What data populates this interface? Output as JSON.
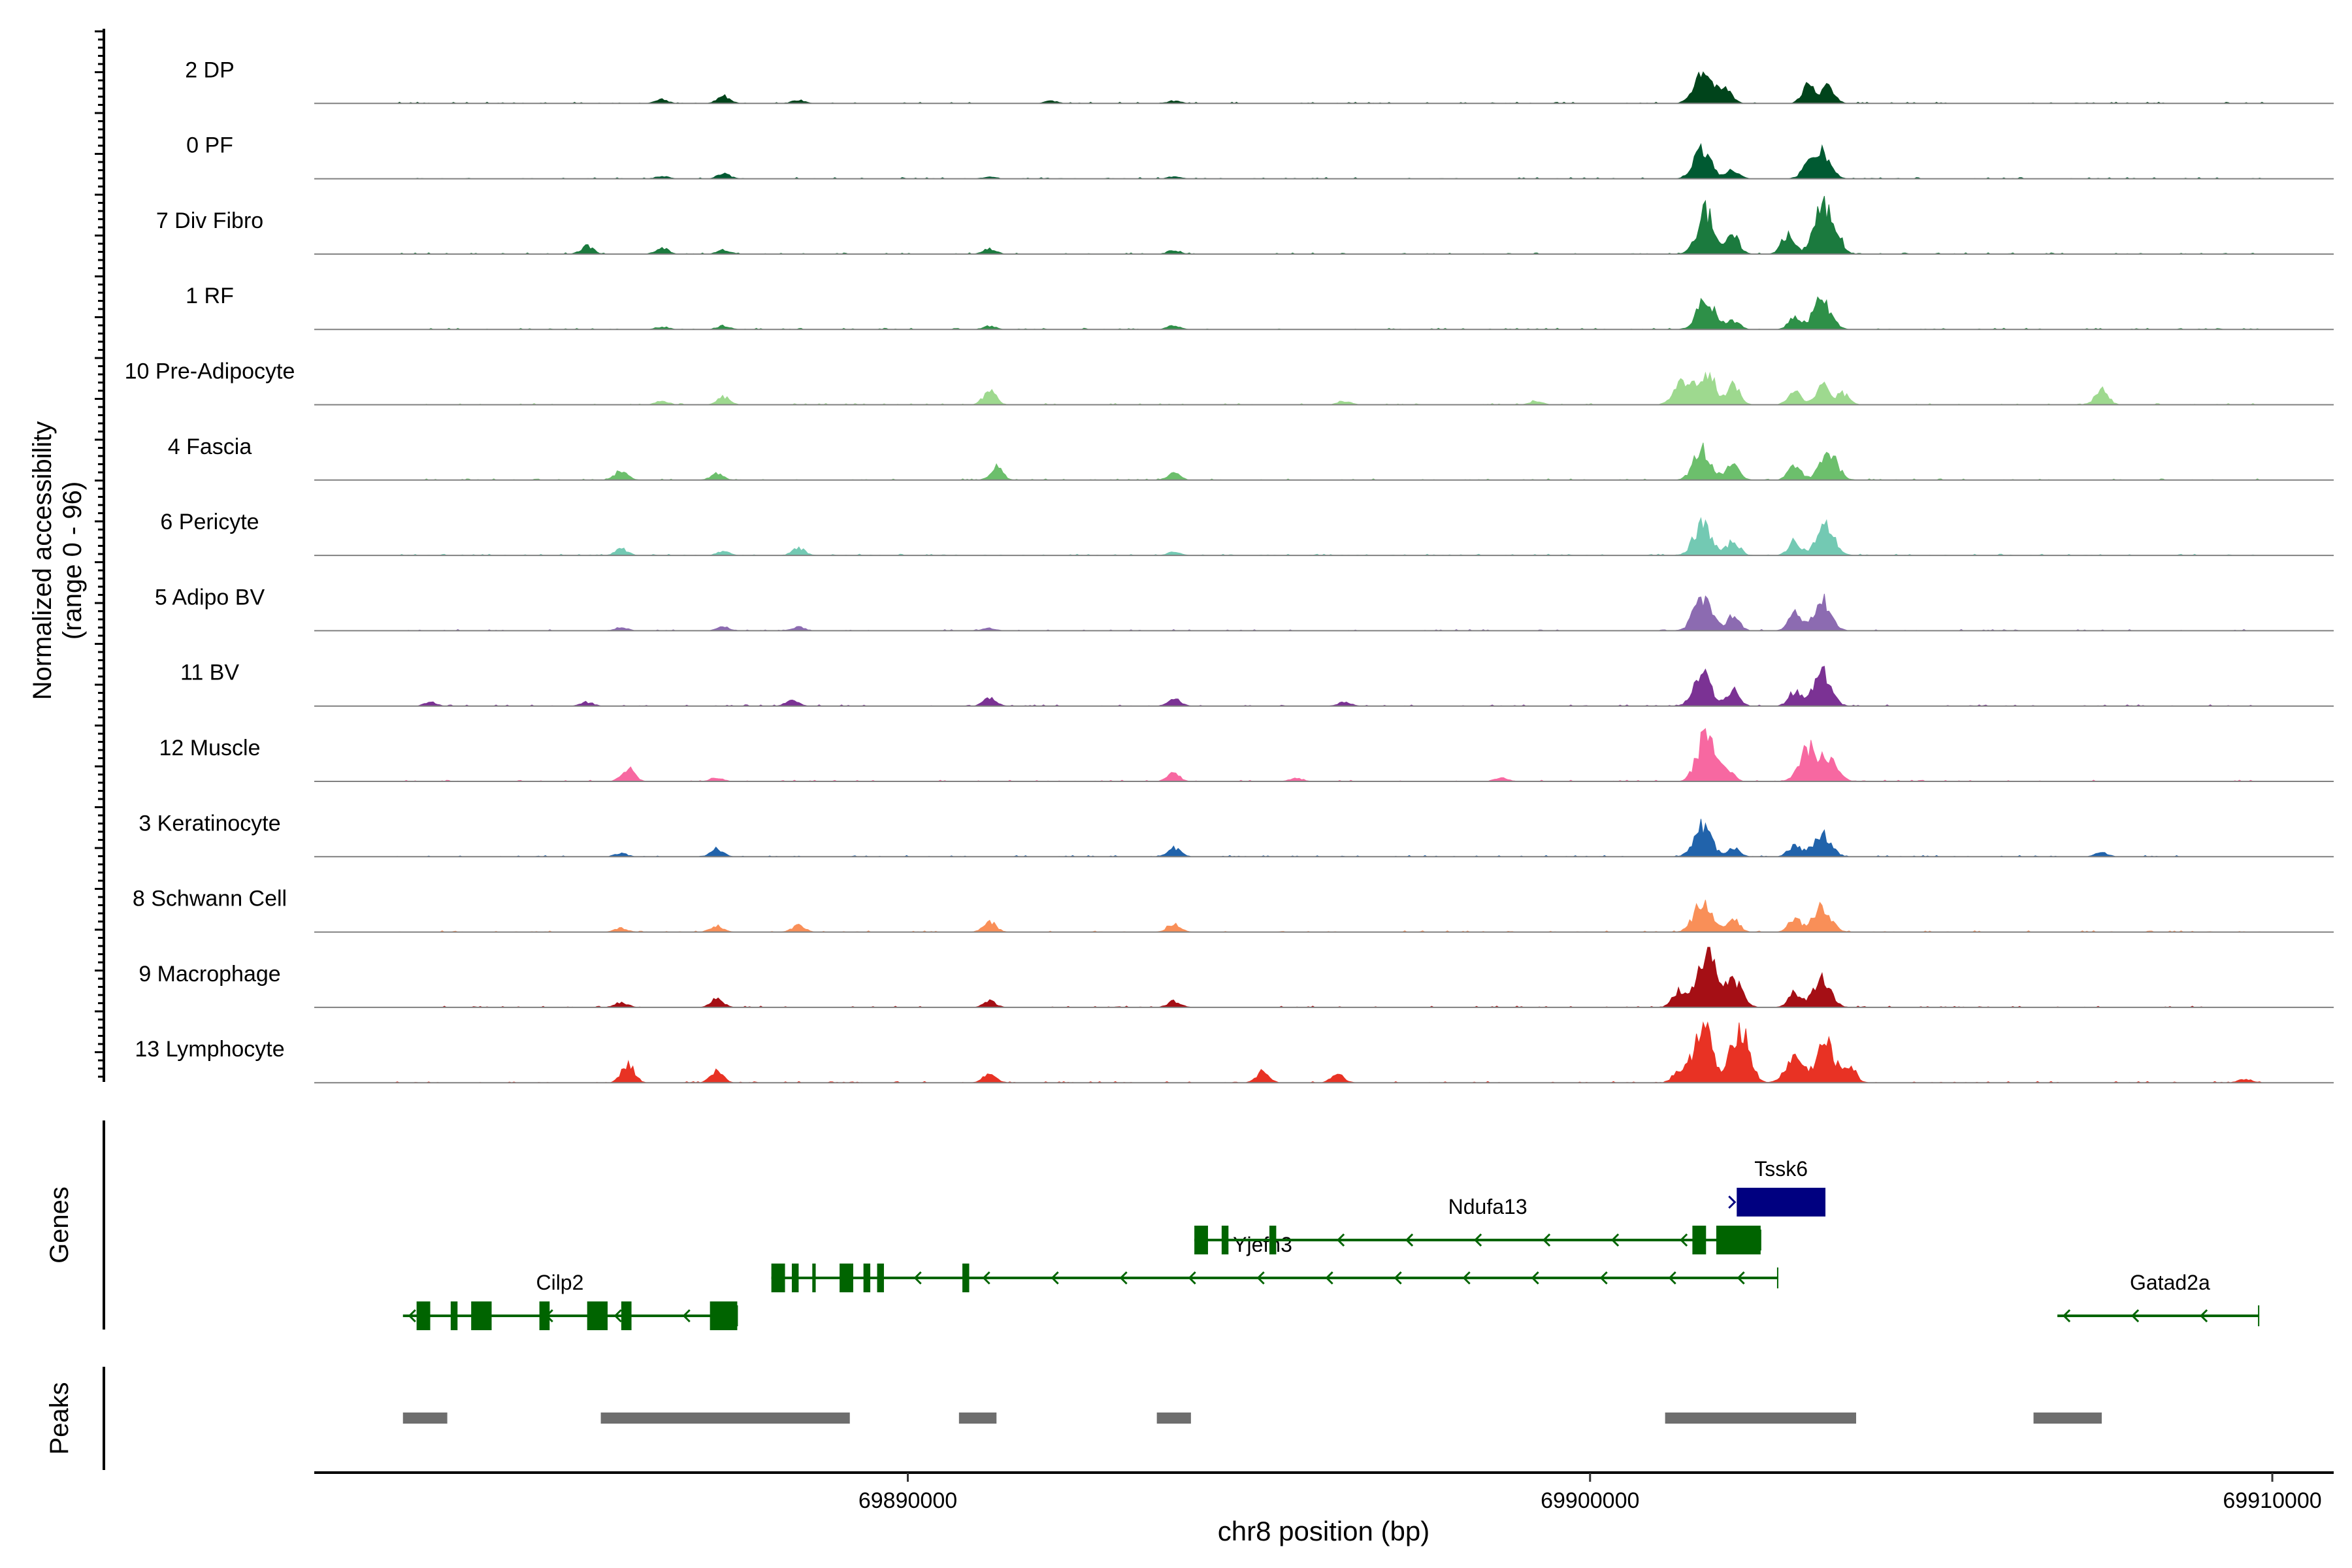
{
  "chart_data": {
    "type": "area",
    "title": "",
    "ylabel": "Normalized accessibility",
    "yrange_label": "(range 0 - 96)",
    "ylim": [
      0,
      96
    ],
    "xlabel": "chr8 position (bp)",
    "xlim": [
      69881300,
      69910900
    ],
    "xticks": [
      {
        "value": 69890000,
        "label": "69890000"
      },
      {
        "value": 69900000,
        "label": "69900000"
      },
      {
        "value": 69910000,
        "label": "69910000"
      }
    ],
    "tracks": [
      {
        "name": "2 DP",
        "color": "#00441b",
        "peaks": [
          {
            "x": 69901660,
            "h": 56
          },
          {
            "x": 69902000,
            "h": 22
          },
          {
            "x": 69903200,
            "h": 30
          },
          {
            "x": 69903500,
            "h": 26
          },
          {
            "x": 69887300,
            "h": 12
          },
          {
            "x": 69886400,
            "h": 6
          },
          {
            "x": 69888400,
            "h": 5
          },
          {
            "x": 69892100,
            "h": 4
          },
          {
            "x": 69893900,
            "h": 4
          },
          {
            "x": 69881900,
            "h": 2
          }
        ]
      },
      {
        "name": "0 PF",
        "color": "#005a32",
        "peaks": [
          {
            "x": 69901650,
            "h": 46
          },
          {
            "x": 69902100,
            "h": 14
          },
          {
            "x": 69903300,
            "h": 44
          },
          {
            "x": 69903500,
            "h": 16
          },
          {
            "x": 69887300,
            "h": 8
          },
          {
            "x": 69886400,
            "h": 4
          },
          {
            "x": 69891200,
            "h": 3
          },
          {
            "x": 69893900,
            "h": 3
          }
        ]
      },
      {
        "name": "7 Div Fibro",
        "color": "#1b7a3e",
        "peaks": [
          {
            "x": 69901700,
            "h": 66
          },
          {
            "x": 69902100,
            "h": 28
          },
          {
            "x": 69902900,
            "h": 30
          },
          {
            "x": 69903400,
            "h": 72
          },
          {
            "x": 69903600,
            "h": 28
          },
          {
            "x": 69885300,
            "h": 12
          },
          {
            "x": 69886400,
            "h": 9
          },
          {
            "x": 69887300,
            "h": 7
          },
          {
            "x": 69891200,
            "h": 8
          },
          {
            "x": 69893900,
            "h": 6
          }
        ]
      },
      {
        "name": "1 RF",
        "color": "#2e9048",
        "peaks": [
          {
            "x": 69901700,
            "h": 48
          },
          {
            "x": 69902100,
            "h": 14
          },
          {
            "x": 69903000,
            "h": 18
          },
          {
            "x": 69903400,
            "h": 46
          },
          {
            "x": 69887300,
            "h": 6
          },
          {
            "x": 69886400,
            "h": 4
          },
          {
            "x": 69891200,
            "h": 5
          },
          {
            "x": 69893900,
            "h": 6
          }
        ]
      },
      {
        "name": "10 Pre-Adipocyte",
        "color": "#9ed98f",
        "peaks": [
          {
            "x": 69901350,
            "h": 32
          },
          {
            "x": 69901700,
            "h": 52
          },
          {
            "x": 69902100,
            "h": 30
          },
          {
            "x": 69903000,
            "h": 24
          },
          {
            "x": 69903400,
            "h": 30
          },
          {
            "x": 69903700,
            "h": 18
          },
          {
            "x": 69891200,
            "h": 22
          },
          {
            "x": 69887300,
            "h": 12
          },
          {
            "x": 69886400,
            "h": 6
          },
          {
            "x": 69907500,
            "h": 24
          },
          {
            "x": 69896400,
            "h": 6
          },
          {
            "x": 69899200,
            "h": 6
          }
        ]
      },
      {
        "name": "4 Fascia",
        "color": "#6cbf6c",
        "peaks": [
          {
            "x": 69901650,
            "h": 48
          },
          {
            "x": 69902100,
            "h": 26
          },
          {
            "x": 69903000,
            "h": 24
          },
          {
            "x": 69903500,
            "h": 40
          },
          {
            "x": 69891300,
            "h": 20
          },
          {
            "x": 69885800,
            "h": 16
          },
          {
            "x": 69887200,
            "h": 10
          },
          {
            "x": 69893900,
            "h": 10
          }
        ]
      },
      {
        "name": "6 Pericyte",
        "color": "#73c9b3",
        "peaks": [
          {
            "x": 69901650,
            "h": 48
          },
          {
            "x": 69902100,
            "h": 22
          },
          {
            "x": 69903000,
            "h": 22
          },
          {
            "x": 69903450,
            "h": 46
          },
          {
            "x": 69888400,
            "h": 12
          },
          {
            "x": 69885800,
            "h": 10
          },
          {
            "x": 69887300,
            "h": 6
          },
          {
            "x": 69893900,
            "h": 5
          }
        ]
      },
      {
        "name": "5 Adipo BV",
        "color": "#8c6bb1",
        "peaks": [
          {
            "x": 69901650,
            "h": 52
          },
          {
            "x": 69902100,
            "h": 24
          },
          {
            "x": 69903000,
            "h": 26
          },
          {
            "x": 69903400,
            "h": 48
          },
          {
            "x": 69887300,
            "h": 6
          },
          {
            "x": 69888400,
            "h": 6
          },
          {
            "x": 69885800,
            "h": 5
          },
          {
            "x": 69891200,
            "h": 4
          }
        ]
      },
      {
        "name": "11 BV",
        "color": "#7b3294",
        "peaks": [
          {
            "x": 69901650,
            "h": 50
          },
          {
            "x": 69902100,
            "h": 24
          },
          {
            "x": 69903000,
            "h": 22
          },
          {
            "x": 69903400,
            "h": 52
          },
          {
            "x": 69891200,
            "h": 12
          },
          {
            "x": 69888300,
            "h": 10
          },
          {
            "x": 69893900,
            "h": 12
          },
          {
            "x": 69883000,
            "h": 6
          },
          {
            "x": 69885300,
            "h": 6
          },
          {
            "x": 69896400,
            "h": 6
          }
        ]
      },
      {
        "name": "12 Muscle",
        "color": "#f768a1",
        "peaks": [
          {
            "x": 69901700,
            "h": 72
          },
          {
            "x": 69902000,
            "h": 20
          },
          {
            "x": 69903200,
            "h": 50
          },
          {
            "x": 69903500,
            "h": 32
          },
          {
            "x": 69885900,
            "h": 22
          },
          {
            "x": 69893900,
            "h": 12
          },
          {
            "x": 69887200,
            "h": 6
          },
          {
            "x": 69895700,
            "h": 5
          },
          {
            "x": 69898700,
            "h": 6
          }
        ]
      },
      {
        "name": "3 Keratinocyte",
        "color": "#2163ab",
        "peaks": [
          {
            "x": 69901650,
            "h": 48
          },
          {
            "x": 69902100,
            "h": 14
          },
          {
            "x": 69903000,
            "h": 18
          },
          {
            "x": 69903400,
            "h": 36
          },
          {
            "x": 69887200,
            "h": 12
          },
          {
            "x": 69893900,
            "h": 14
          },
          {
            "x": 69885800,
            "h": 5
          },
          {
            "x": 69907500,
            "h": 6
          }
        ]
      },
      {
        "name": "8 Schwann Cell",
        "color": "#f98f58",
        "peaks": [
          {
            "x": 69901650,
            "h": 46
          },
          {
            "x": 69902100,
            "h": 20
          },
          {
            "x": 69903000,
            "h": 20
          },
          {
            "x": 69903400,
            "h": 40
          },
          {
            "x": 69891200,
            "h": 16
          },
          {
            "x": 69893900,
            "h": 14
          },
          {
            "x": 69887200,
            "h": 10
          },
          {
            "x": 69888400,
            "h": 10
          },
          {
            "x": 69885800,
            "h": 6
          }
        ]
      },
      {
        "name": "9 Macrophage",
        "color": "#a50f15",
        "peaks": [
          {
            "x": 69901700,
            "h": 92
          },
          {
            "x": 69902100,
            "h": 42
          },
          {
            "x": 69901300,
            "h": 26
          },
          {
            "x": 69903000,
            "h": 24
          },
          {
            "x": 69903400,
            "h": 44
          },
          {
            "x": 69887200,
            "h": 14
          },
          {
            "x": 69891200,
            "h": 10
          },
          {
            "x": 69893900,
            "h": 10
          },
          {
            "x": 69885800,
            "h": 8
          }
        ]
      },
      {
        "name": "13 Lymphocyte",
        "color": "#e83224",
        "peaks": [
          {
            "x": 69901650,
            "h": 96
          },
          {
            "x": 69902200,
            "h": 90
          },
          {
            "x": 69901300,
            "h": 18
          },
          {
            "x": 69903000,
            "h": 40
          },
          {
            "x": 69903450,
            "h": 62
          },
          {
            "x": 69903800,
            "h": 26
          },
          {
            "x": 69885900,
            "h": 30
          },
          {
            "x": 69887200,
            "h": 18
          },
          {
            "x": 69891200,
            "h": 16
          },
          {
            "x": 69895200,
            "h": 18
          },
          {
            "x": 69896300,
            "h": 14
          },
          {
            "x": 69882000,
            "h": 10
          },
          {
            "x": 69909600,
            "h": 6
          }
        ]
      }
    ],
    "genes": [
      {
        "name": "Cilp2",
        "start": 69882600,
        "end": 69887500,
        "strand": "-",
        "color": "#006400",
        "row": 2,
        "exons": [
          [
            69882800,
            69883000
          ],
          [
            69883300,
            69883400
          ],
          [
            69883600,
            69883900
          ],
          [
            69884600,
            69884750
          ],
          [
            69885300,
            69885600
          ],
          [
            69885800,
            69885950
          ],
          [
            69887100,
            69887500
          ]
        ],
        "label_x": 69884900
      },
      {
        "name": "Yjefn3",
        "start": 69888000,
        "end": 69902750,
        "strand": "-",
        "color": "#006400",
        "row": 1,
        "exons": [
          [
            69888000,
            69888200
          ],
          [
            69888300,
            69888400
          ],
          [
            69888600,
            69888650
          ],
          [
            69889000,
            69889200
          ],
          [
            69889350,
            69889450
          ],
          [
            69889550,
            69889650
          ],
          [
            69890800,
            69890900
          ]
        ],
        "label_x": 69895200
      },
      {
        "name": "Ndufa13",
        "start": 69894200,
        "end": 69902500,
        "strand": "-",
        "color": "#006400",
        "row": 0,
        "exons": [
          [
            69894200,
            69894400
          ],
          [
            69894600,
            69894700
          ],
          [
            69895300,
            69895400
          ],
          [
            69901500,
            69901700
          ],
          [
            69901850,
            69902500
          ]
        ],
        "label_x": 69898500
      },
      {
        "name": "Tssk6",
        "start": 69902150,
        "end": 69903450,
        "strand": "+",
        "color": "#000080",
        "row": -1,
        "exons": [
          [
            69902150,
            69903450
          ]
        ],
        "label_x": 69902800
      },
      {
        "name": "Gatad2a",
        "start": 69906850,
        "end": 69909800,
        "strand": "-",
        "color": "#006400",
        "row": 2,
        "exons": [],
        "label_x": 69908500
      }
    ],
    "peaks_label": "Peaks",
    "genes_label": "Genes",
    "peak_regions": [
      [
        69882600,
        69883250
      ],
      [
        69885500,
        69889150
      ],
      [
        69890750,
        69891300
      ],
      [
        69893650,
        69894150
      ],
      [
        69901100,
        69903900
      ],
      [
        69906500,
        69907500
      ]
    ]
  }
}
